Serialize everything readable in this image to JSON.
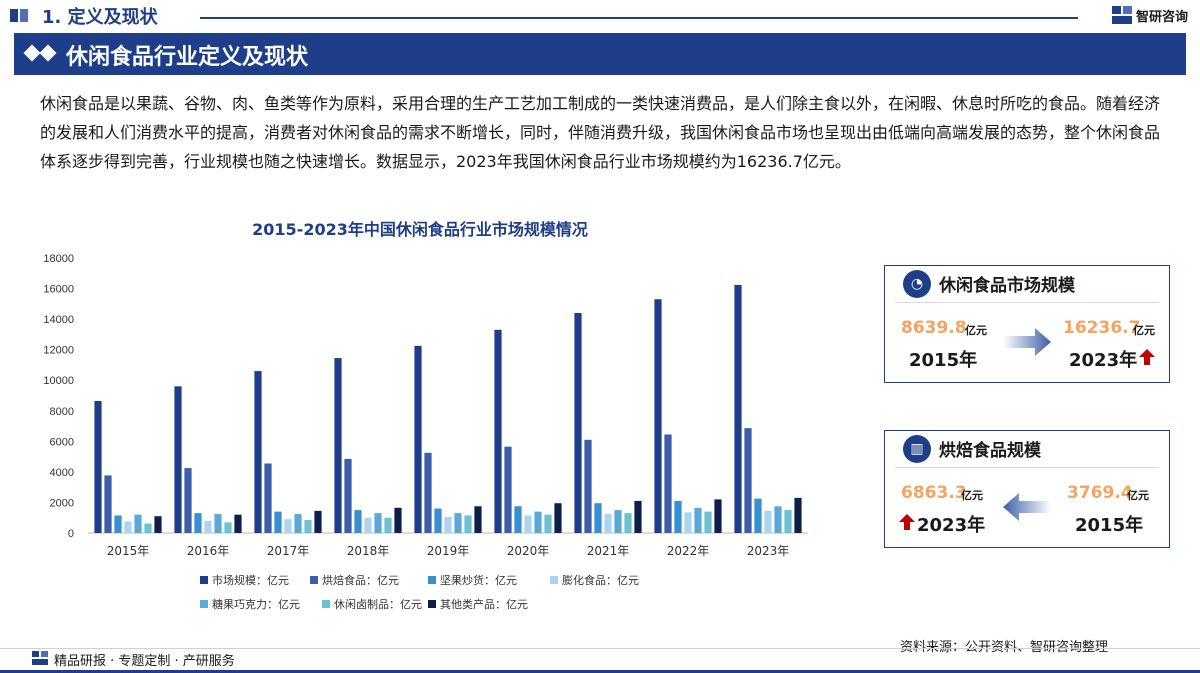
{
  "header": {
    "section_title": "1. 定义及现状",
    "brand": "智研咨询"
  },
  "banner": {
    "title": "休闲食品行业定义及现状"
  },
  "intro": {
    "text": "休闲食品是以果蔬、谷物、肉、鱼类等作为原料，采用合理的生产工艺加工制成的一类快速消费品，是人们除主食以外，在闲暇、休息时所吃的食品。随着经济的发展和人们消费水平的提高，消费者对休闲食品的需求不断增长，同时，伴随消费升级，我国休闲食品市场也呈现出由低端向高端发展的态势，整个休闲食品体系逐步得到完善，行业规模也随之快速增长。数据显示，2023年我国休闲食品行业市场规模约为16236.7亿元。"
  },
  "chart_data": {
    "type": "bar",
    "title": "2015-2023年中国休闲食品行业市场规模情况",
    "categories": [
      "2015年",
      "2016年",
      "2017年",
      "2018年",
      "2019年",
      "2020年",
      "2021年",
      "2022年",
      "2023年"
    ],
    "ylim": [
      0,
      18000
    ],
    "yticks": [
      "0",
      "2000",
      "4000",
      "6000",
      "8000",
      "10000",
      "12000",
      "14000",
      "16000",
      "18000"
    ],
    "grid": false,
    "legend_position": "bottom",
    "series": [
      {
        "name": "市场规模：亿元",
        "color": "#1f3e8a",
        "values": [
          8639.8,
          9600,
          10600,
          11450,
          12250,
          13300,
          14400,
          15300,
          16236.7
        ]
      },
      {
        "name": "烘焙食品：亿元",
        "color": "#3d5ea8",
        "values": [
          3769.4,
          4250,
          4550,
          4850,
          5250,
          5650,
          6100,
          6450,
          6863.3
        ]
      },
      {
        "name": "坚果炒货：亿元",
        "color": "#3690d2",
        "values": [
          1150,
          1300,
          1400,
          1500,
          1600,
          1750,
          1950,
          2100,
          2250
        ]
      },
      {
        "name": "膨化食品：亿元",
        "color": "#a9d4f2",
        "values": [
          750,
          800,
          900,
          1000,
          1050,
          1150,
          1250,
          1350,
          1450
        ]
      },
      {
        "name": "糖果巧克力：亿元",
        "color": "#5ba9d8",
        "values": [
          1200,
          1250,
          1250,
          1300,
          1300,
          1400,
          1500,
          1650,
          1750
        ]
      },
      {
        "name": "休闲卤制品：亿元",
        "color": "#6cc3cf",
        "values": [
          620,
          700,
          850,
          1000,
          1150,
          1200,
          1300,
          1400,
          1500
        ]
      },
      {
        "name": "其他类产品：亿元",
        "color": "#0f1f4a",
        "values": [
          1100,
          1200,
          1450,
          1650,
          1750,
          1950,
          2100,
          2200,
          2300
        ]
      }
    ]
  },
  "card_market": {
    "title": "休闲食品市场规模",
    "from_value": "8639.8",
    "from_unit": "亿元",
    "from_year": "2015年",
    "to_value": "16236.7",
    "to_unit": "亿元",
    "to_year": "2023年"
  },
  "card_bakery": {
    "title": "烘焙食品规模",
    "to_value": "6863.3",
    "to_unit": "亿元",
    "to_year": "2023年",
    "from_value": "3769.4",
    "from_unit": "亿元",
    "from_year": "2015年"
  },
  "footer": {
    "left": "精品研报 · 专题定制 · 产研服务",
    "source": "资料来源：公开资料、智研咨询整理"
  },
  "colors": {
    "brand": "#1f3e8a",
    "highlight": "#f4a460",
    "up_arrow": "#c00000"
  }
}
